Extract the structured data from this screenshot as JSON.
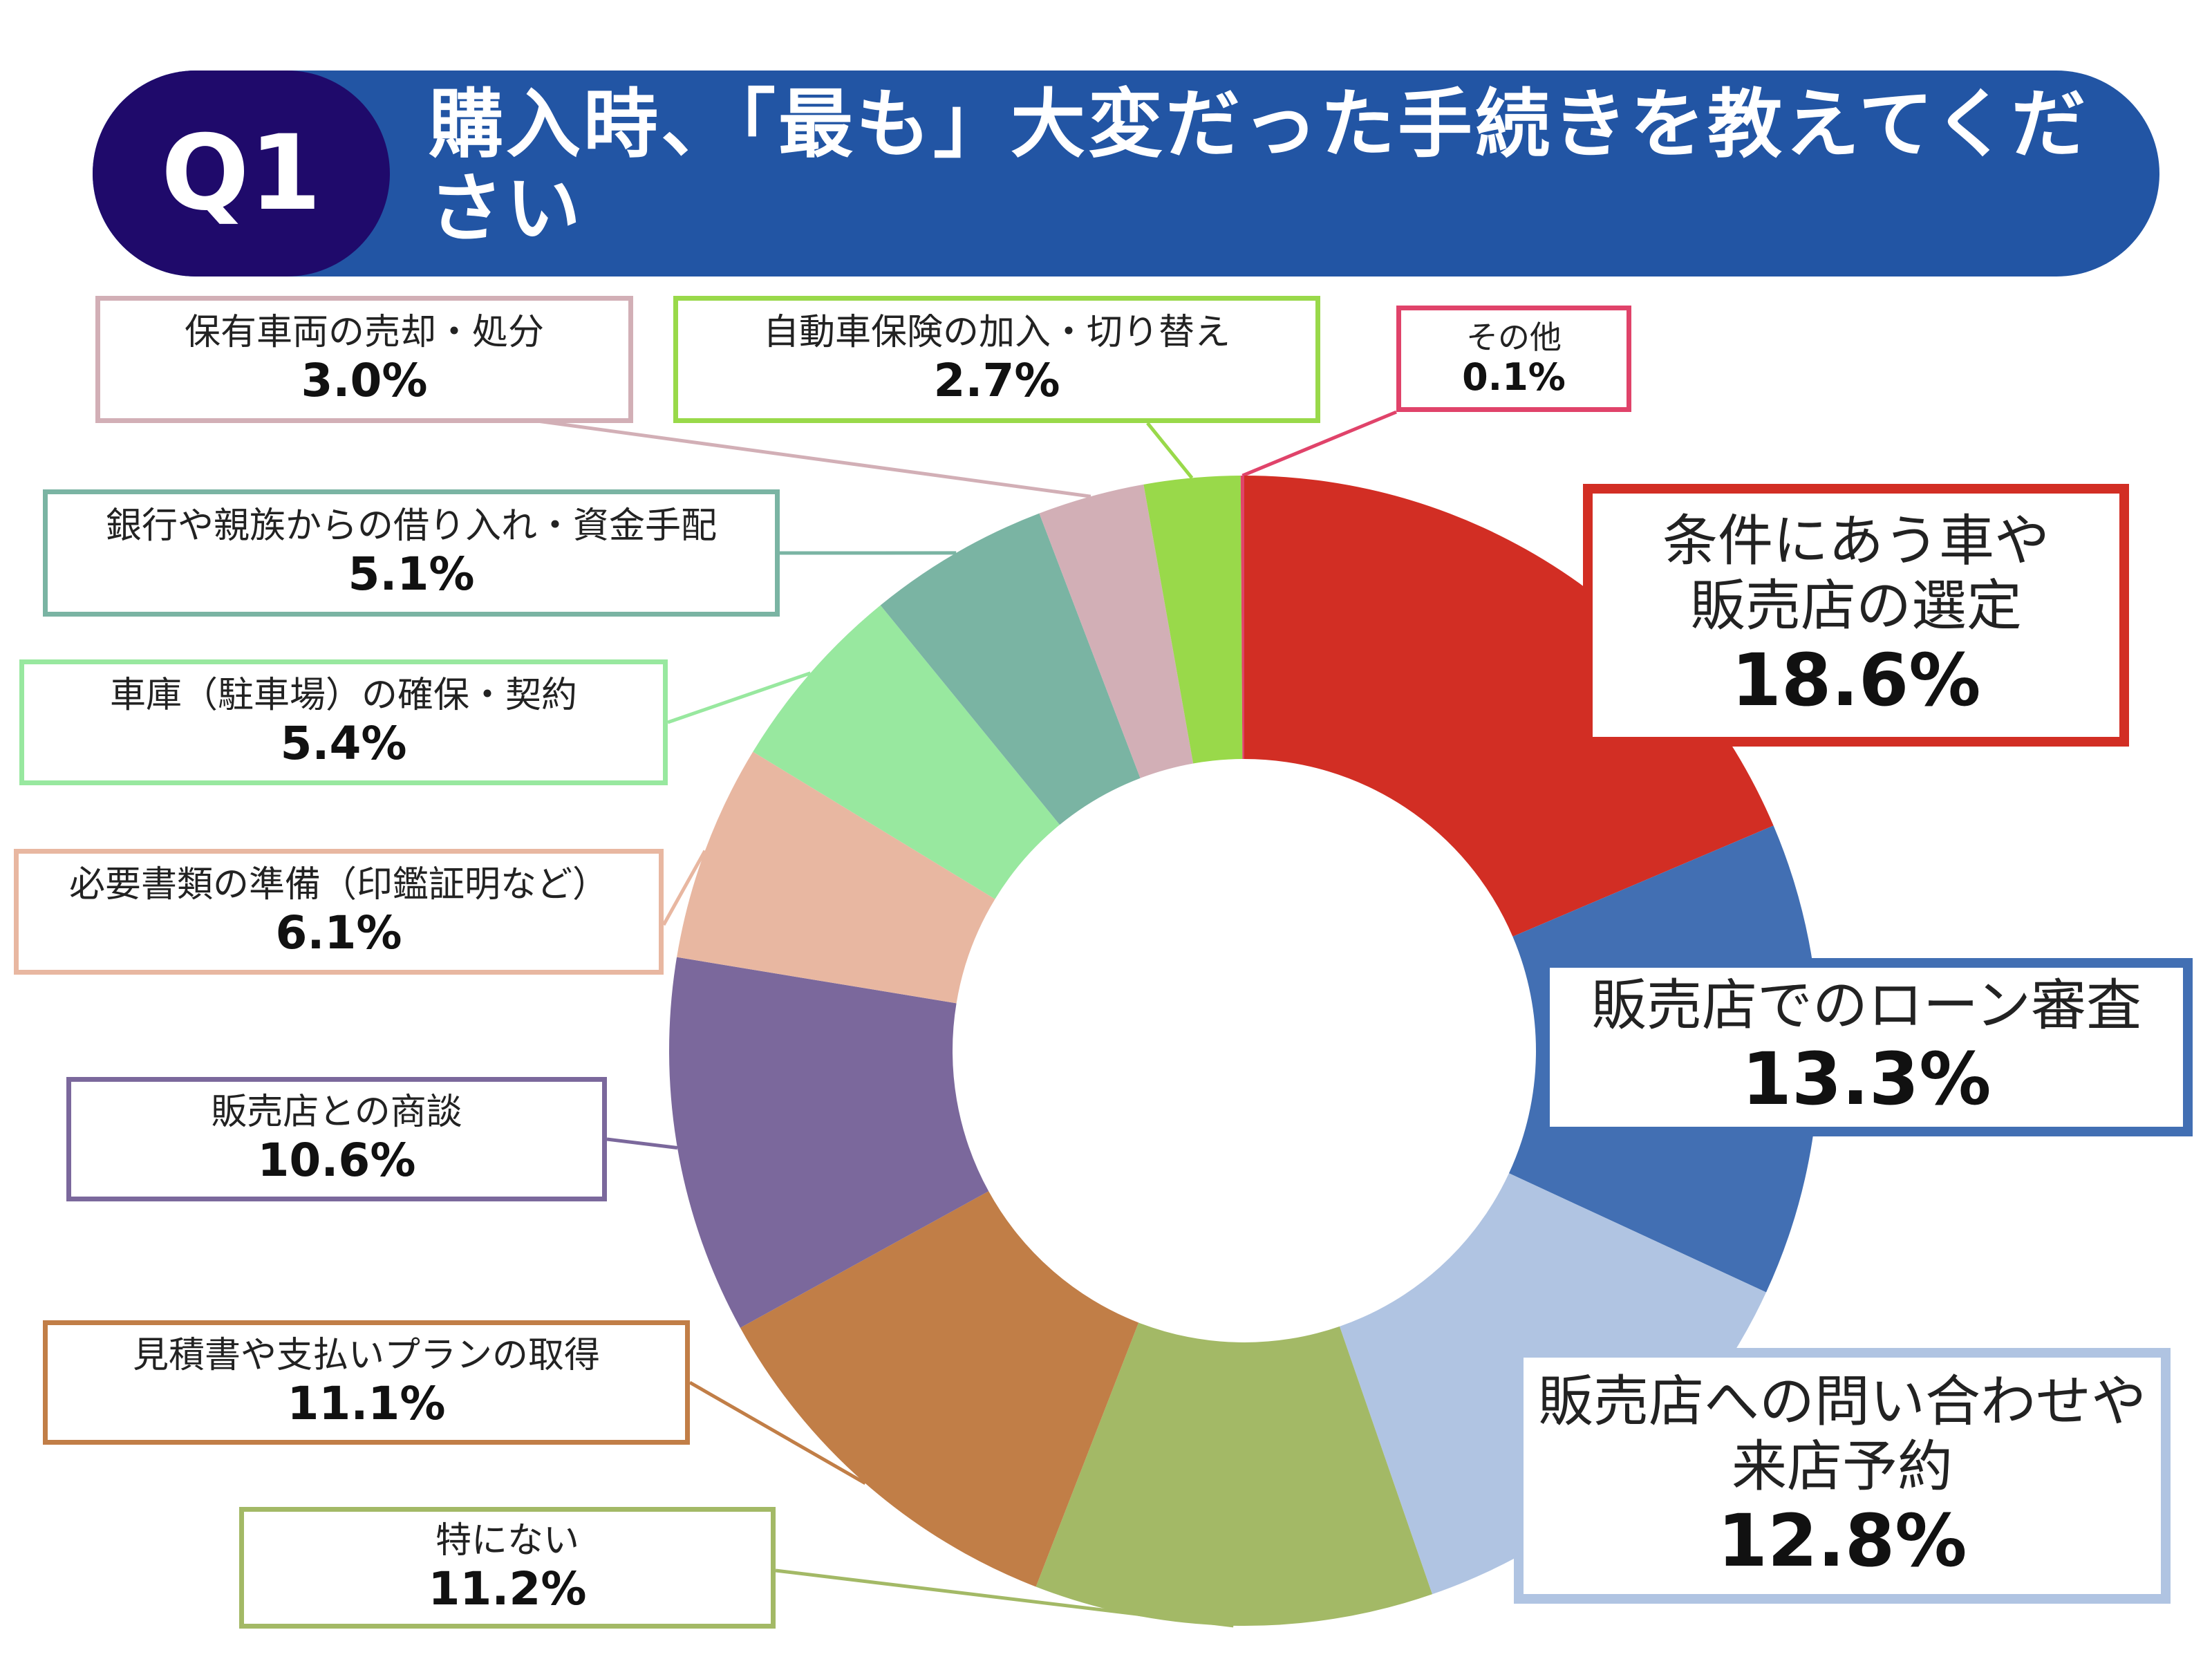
{
  "header": {
    "badge": "Q1",
    "title": "購入時、「最も」大変だった手続きを教えてください"
  },
  "chart_data": {
    "type": "pie",
    "donut": true,
    "unit": "%",
    "slices": [
      {
        "label": "条件にあう車や販売店の選定",
        "label_lines": [
          "条件にあう車や",
          "販売店の選定"
        ],
        "value": 18.6,
        "value_text": "18.6%",
        "color": "#d22e24",
        "box_color": "#d22e24",
        "size": "large"
      },
      {
        "label": "販売店でのローン審査",
        "label_lines": [
          "販売店でのローン審査"
        ],
        "value": 13.3,
        "value_text": "13.3%",
        "color": "#426fb3",
        "box_color": "#426fb3",
        "size": "large"
      },
      {
        "label": "販売店への問い合わせや来店予約",
        "label_lines": [
          "販売店への問い合わせや",
          "来店予約"
        ],
        "value": 12.8,
        "value_text": "12.8%",
        "color": "#b0c4e2",
        "box_color": "#b0c4e2",
        "size": "large"
      },
      {
        "label": "特にない",
        "label_lines": [
          "特にない"
        ],
        "value": 11.2,
        "value_text": "11.2%",
        "color": "#a3b966",
        "box_color": "#a3b966",
        "size": "small"
      },
      {
        "label": "見積書や支払いプランの取得",
        "label_lines": [
          "見積書や支払いプランの取得"
        ],
        "value": 11.1,
        "value_text": "11.1%",
        "color": "#c17e47",
        "box_color": "#c17e47",
        "size": "small"
      },
      {
        "label": "販売店との商談",
        "label_lines": [
          "販売店との商談"
        ],
        "value": 10.6,
        "value_text": "10.6%",
        "color": "#7b689c",
        "box_color": "#7b689c",
        "size": "small"
      },
      {
        "label": "必要書類の準備（印鑑証明など）",
        "label_lines": [
          "必要書類の準備（印鑑証明など）"
        ],
        "value": 6.1,
        "value_text": "6.1%",
        "color": "#e8b7a1",
        "box_color": "#e8b7a1",
        "size": "small"
      },
      {
        "label": "車庫（駐車場）の確保・契約",
        "label_lines": [
          "車庫（駐車場）の確保・契約"
        ],
        "value": 5.4,
        "value_text": "5.4%",
        "color": "#98e89f",
        "box_color": "#98e89f",
        "size": "small"
      },
      {
        "label": "銀行や親族からの借り入れ・資金手配",
        "label_lines": [
          "銀行や親族からの借り入れ・資金手配"
        ],
        "value": 5.1,
        "value_text": "5.1%",
        "color": "#7ab4a3",
        "box_color": "#7ab4a3",
        "size": "small"
      },
      {
        "label": "保有車両の売却・処分",
        "label_lines": [
          "保有車両の売却・処分"
        ],
        "value": 3.0,
        "value_text": "3.0%",
        "color": "#d2afb6",
        "box_color": "#d2afb6",
        "size": "small"
      },
      {
        "label": "自動車保険の加入・切り替え",
        "label_lines": [
          "自動車保険の加入・切り替え"
        ],
        "value": 2.7,
        "value_text": "2.7%",
        "color": "#99d94a",
        "box_color": "#99d94a",
        "size": "small"
      },
      {
        "label": "その他",
        "label_lines": [
          "その他"
        ],
        "value": 0.1,
        "value_text": "0.1%",
        "color": "#e0436a",
        "box_color": "#e0436a",
        "size": "tiny"
      }
    ]
  }
}
